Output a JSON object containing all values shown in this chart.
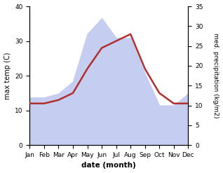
{
  "months": [
    "Jan",
    "Feb",
    "Mar",
    "Apr",
    "May",
    "Jun",
    "Jul",
    "Aug",
    "Sep",
    "Oct",
    "Nov",
    "Dec"
  ],
  "temperature": [
    12,
    12,
    13,
    15,
    22,
    28,
    30,
    32,
    22,
    15,
    12,
    12
  ],
  "precipitation": [
    12,
    12,
    13,
    16,
    28,
    32,
    27,
    27,
    18,
    10,
    10,
    13
  ],
  "temp_color": "#b03030",
  "precip_fill_color": "#c5cdf0",
  "ylabel_left": "max temp (C)",
  "ylabel_right": "med. precipitation (kg/m2)",
  "xlabel": "date (month)",
  "ylim_left": [
    0,
    40
  ],
  "ylim_right": [
    0,
    35
  ],
  "yticks_left": [
    0,
    10,
    20,
    30,
    40
  ],
  "yticks_right": [
    0,
    5,
    10,
    15,
    20,
    25,
    30,
    35
  ],
  "temp_linewidth": 1.8,
  "background_color": "#ffffff"
}
